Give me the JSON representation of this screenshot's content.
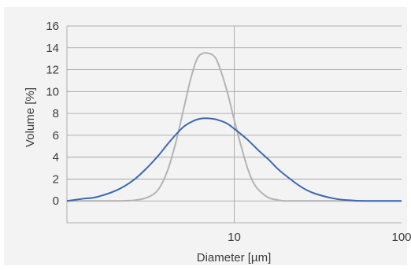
{
  "chart_data": {
    "type": "line",
    "title": "",
    "xlabel": "Diameter [µm]",
    "ylabel": "Volume [%]",
    "xscale": "log",
    "xlim": [
      1,
      100
    ],
    "ylim": [
      -2,
      16
    ],
    "x_ticks": [
      {
        "value": 10,
        "label": "10"
      },
      {
        "value": 100,
        "label": "100"
      }
    ],
    "y_ticks": [
      0,
      2,
      4,
      6,
      8,
      10,
      12,
      14,
      16
    ],
    "grid": {
      "horizontal": true,
      "vertical_major": true
    },
    "legend": "none",
    "series": [
      {
        "color": "#b3b3b3",
        "x": [
          1,
          1.5,
          2,
          2.5,
          3,
          3.5,
          4,
          4.5,
          5,
          5.5,
          6,
          6.5,
          7,
          7.5,
          8,
          9,
          10,
          11,
          12,
          13,
          14,
          16,
          18,
          20,
          25,
          30,
          40,
          60,
          100
        ],
        "y": [
          0,
          0,
          0,
          0.05,
          0.3,
          1.0,
          2.8,
          5.5,
          8.5,
          11.2,
          13.0,
          13.5,
          13.5,
          13.3,
          12.6,
          10.2,
          7.4,
          5.0,
          3.0,
          1.7,
          1.0,
          0.3,
          0.1,
          0,
          0,
          0,
          0,
          0,
          0
        ]
      },
      {
        "color": "#3b68b3",
        "x": [
          1,
          1.25,
          1.5,
          2,
          2.5,
          3,
          3.5,
          4,
          4.5,
          5,
          5.5,
          6,
          6.5,
          7,
          7.5,
          8,
          9,
          10,
          12,
          14,
          16,
          18,
          20,
          25,
          30,
          40,
          50,
          60,
          80,
          100
        ],
        "y": [
          0,
          0.2,
          0.35,
          1.0,
          1.9,
          3.0,
          4.1,
          5.2,
          6.1,
          6.8,
          7.2,
          7.45,
          7.55,
          7.55,
          7.5,
          7.4,
          7.1,
          6.6,
          5.6,
          4.6,
          3.8,
          3.0,
          2.4,
          1.3,
          0.7,
          0.2,
          0.05,
          0,
          0,
          0
        ]
      }
    ]
  }
}
